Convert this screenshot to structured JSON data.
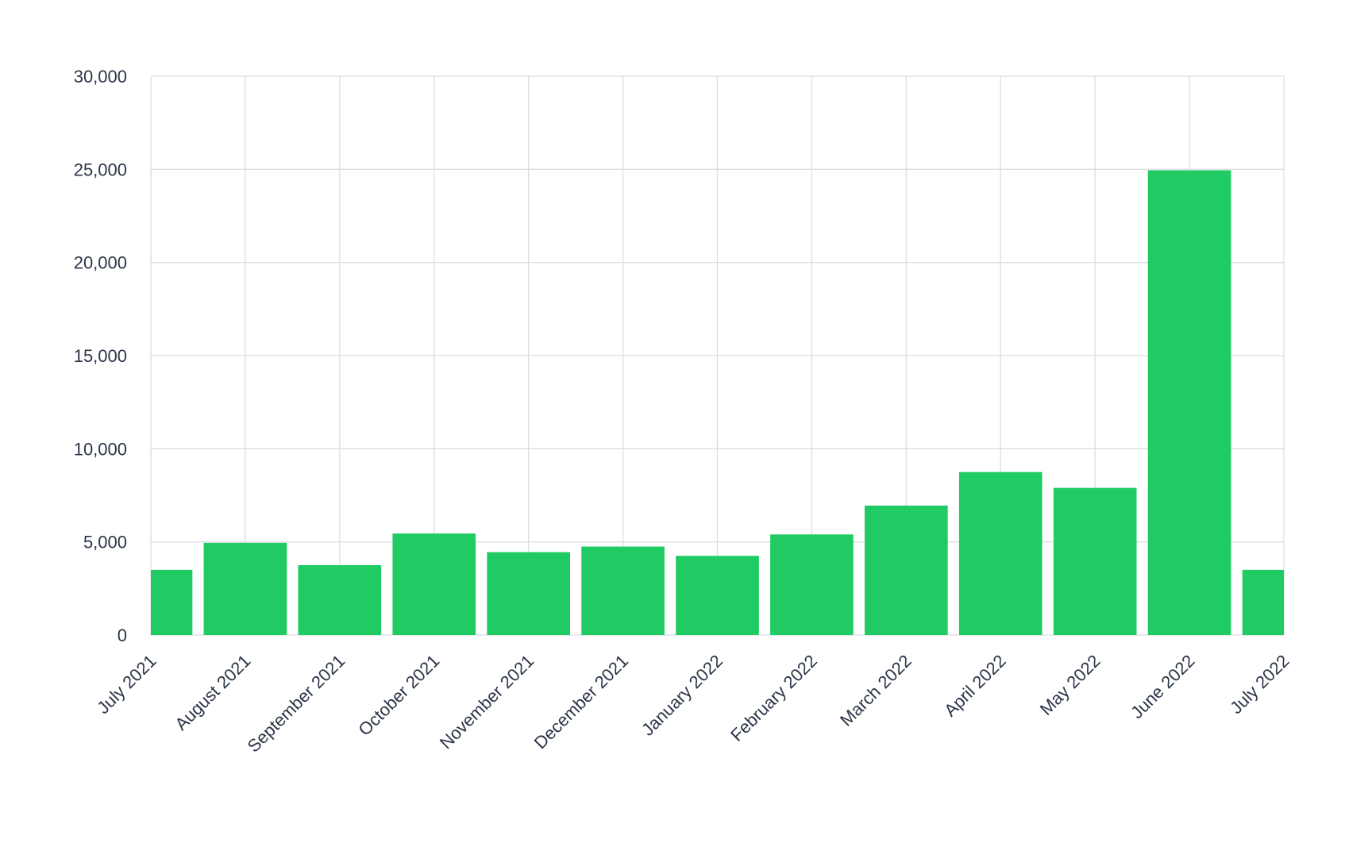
{
  "chart_data": {
    "type": "bar",
    "title": "",
    "xlabel": "",
    "ylabel": "",
    "categories": [
      "July 2021",
      "August 2021",
      "September 2021",
      "October 2021",
      "November 2021",
      "December 2021",
      "January 2022",
      "February 2022",
      "March 2022",
      "April 2022",
      "May 2022",
      "June 2022",
      "July 2022"
    ],
    "values": [
      3500,
      4950,
      3750,
      5450,
      4450,
      4750,
      4250,
      5400,
      6950,
      8750,
      7900,
      24950,
      3500
    ],
    "ylim": [
      0,
      30000
    ],
    "y_ticks": [
      "0",
      "5,000",
      "10,000",
      "15,000",
      "20,000",
      "25,000",
      "30,000"
    ],
    "grid": true,
    "bar_color": "#1fcb62",
    "grid_color": "#dcdde0",
    "label_color": "#2b3548"
  }
}
